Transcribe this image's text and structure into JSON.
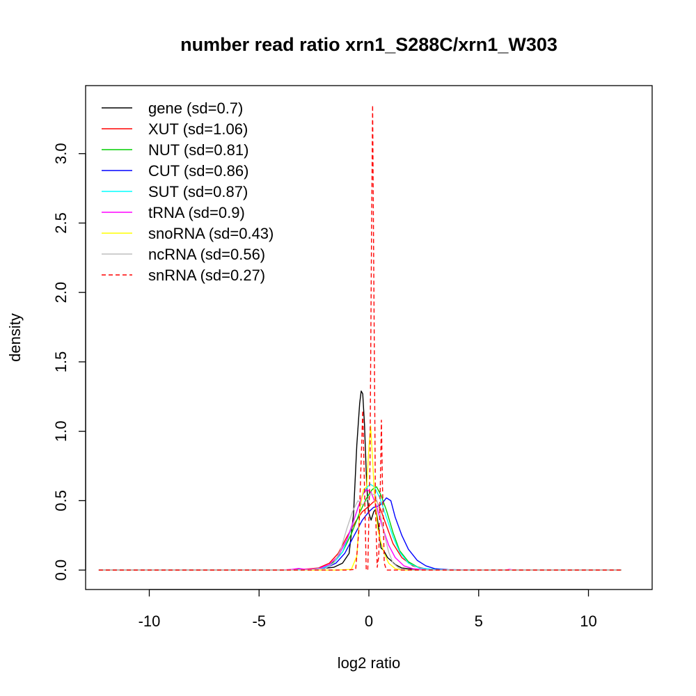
{
  "chart_data": {
    "type": "line",
    "title": "number read ratio xrn1_S288C/xrn1_W303",
    "xlabel": "log2 ratio",
    "ylabel": "density",
    "xlim": [
      -12.9,
      12.9
    ],
    "ylim": [
      -0.14,
      3.49
    ],
    "x_ticks": [
      -10,
      -5,
      0,
      5,
      10
    ],
    "y_ticks": [
      0.0,
      0.5,
      1.0,
      1.5,
      2.0,
      2.5,
      3.0
    ],
    "x_tick_labels": [
      "-10",
      "-5",
      "0",
      "5",
      "10"
    ],
    "y_tick_labels": [
      "0.0",
      "0.5",
      "1.0",
      "1.5",
      "2.0",
      "2.5",
      "3.0"
    ],
    "legend_position": "top-left",
    "grid": false,
    "series": [
      {
        "name": "gene (sd=0.7)",
        "color": "#000000",
        "dash": false,
        "points": [
          [
            -12.3,
            0
          ],
          [
            -4,
            0
          ],
          [
            -3,
            0.005
          ],
          [
            -2.2,
            0.01
          ],
          [
            -1.6,
            0.02
          ],
          [
            -1.2,
            0.05
          ],
          [
            -0.9,
            0.12
          ],
          [
            -0.7,
            0.4
          ],
          [
            -0.55,
            0.9
          ],
          [
            -0.42,
            1.2
          ],
          [
            -0.35,
            1.29
          ],
          [
            -0.28,
            1.27
          ],
          [
            -0.2,
            1.05
          ],
          [
            -0.1,
            0.62
          ],
          [
            -0.02,
            0.42
          ],
          [
            0.1,
            0.36
          ],
          [
            0.22,
            0.42
          ],
          [
            0.32,
            0.44
          ],
          [
            0.45,
            0.3
          ],
          [
            0.55,
            0.16
          ],
          [
            0.68,
            0.14
          ],
          [
            0.85,
            0.09
          ],
          [
            1.0,
            0.07
          ],
          [
            1.2,
            0.04
          ],
          [
            1.5,
            0.015
          ],
          [
            2.0,
            0.006
          ],
          [
            3.0,
            0.002
          ],
          [
            4.0,
            0
          ],
          [
            11.5,
            0
          ]
        ]
      },
      {
        "name": "XUT (sd=1.06)",
        "color": "#ff0000",
        "dash": false,
        "points": [
          [
            -12.3,
            0
          ],
          [
            -4,
            0
          ],
          [
            -3,
            0.005
          ],
          [
            -2.3,
            0.015
          ],
          [
            -1.8,
            0.05
          ],
          [
            -1.4,
            0.12
          ],
          [
            -1.0,
            0.24
          ],
          [
            -0.6,
            0.35
          ],
          [
            -0.3,
            0.42
          ],
          [
            0.0,
            0.46
          ],
          [
            0.2,
            0.49
          ],
          [
            0.35,
            0.5
          ],
          [
            0.55,
            0.43
          ],
          [
            0.8,
            0.32
          ],
          [
            1.1,
            0.19
          ],
          [
            1.5,
            0.09
          ],
          [
            2.0,
            0.03
          ],
          [
            2.6,
            0.008
          ],
          [
            3.5,
            0.002
          ],
          [
            5,
            0
          ],
          [
            11.5,
            0
          ]
        ]
      },
      {
        "name": "NUT (sd=0.81)",
        "color": "#00cd00",
        "dash": false,
        "points": [
          [
            -12.3,
            0
          ],
          [
            -4,
            0
          ],
          [
            -2.6,
            0.005
          ],
          [
            -2.0,
            0.02
          ],
          [
            -1.6,
            0.06
          ],
          [
            -1.2,
            0.13
          ],
          [
            -0.8,
            0.26
          ],
          [
            -0.4,
            0.42
          ],
          [
            -0.1,
            0.52
          ],
          [
            0.15,
            0.58
          ],
          [
            0.35,
            0.6
          ],
          [
            0.55,
            0.54
          ],
          [
            0.8,
            0.43
          ],
          [
            1.1,
            0.27
          ],
          [
            1.4,
            0.14
          ],
          [
            1.8,
            0.06
          ],
          [
            2.3,
            0.015
          ],
          [
            3.0,
            0.003
          ],
          [
            4,
            0
          ],
          [
            11.5,
            0
          ]
        ]
      },
      {
        "name": "CUT (sd=0.86)",
        "color": "#0000ff",
        "dash": false,
        "points": [
          [
            -12.3,
            0
          ],
          [
            -4,
            0
          ],
          [
            -2.4,
            0.005
          ],
          [
            -1.9,
            0.02
          ],
          [
            -1.5,
            0.05
          ],
          [
            -1.1,
            0.12
          ],
          [
            -0.7,
            0.24
          ],
          [
            -0.3,
            0.36
          ],
          [
            0.0,
            0.42
          ],
          [
            0.2,
            0.45
          ],
          [
            0.4,
            0.46
          ],
          [
            0.6,
            0.48
          ],
          [
            0.8,
            0.52
          ],
          [
            1.0,
            0.5
          ],
          [
            1.2,
            0.38
          ],
          [
            1.5,
            0.25
          ],
          [
            1.8,
            0.15
          ],
          [
            2.2,
            0.07
          ],
          [
            2.6,
            0.03
          ],
          [
            3.0,
            0.01
          ],
          [
            3.6,
            0.003
          ],
          [
            5,
            0
          ],
          [
            11.5,
            0
          ]
        ]
      },
      {
        "name": "SUT (sd=0.87)",
        "color": "#00ffff",
        "dash": false,
        "points": [
          [
            -12.3,
            0
          ],
          [
            -4,
            0
          ],
          [
            -2.6,
            0.005
          ],
          [
            -2.0,
            0.02
          ],
          [
            -1.6,
            0.05
          ],
          [
            -1.2,
            0.13
          ],
          [
            -0.8,
            0.3
          ],
          [
            -0.5,
            0.45
          ],
          [
            -0.2,
            0.57
          ],
          [
            0.05,
            0.62
          ],
          [
            0.25,
            0.6
          ],
          [
            0.5,
            0.52
          ],
          [
            0.8,
            0.38
          ],
          [
            1.1,
            0.24
          ],
          [
            1.4,
            0.13
          ],
          [
            1.8,
            0.05
          ],
          [
            2.3,
            0.015
          ],
          [
            3.0,
            0.004
          ],
          [
            4,
            0
          ],
          [
            11.5,
            0
          ]
        ]
      },
      {
        "name": "tRNA (sd=0.9)",
        "color": "#ff00ff",
        "dash": false,
        "points": [
          [
            -12.3,
            0
          ],
          [
            -4,
            0
          ],
          [
            -3.5,
            0.005
          ],
          [
            -3.2,
            0.012
          ],
          [
            -2.9,
            0.005
          ],
          [
            -2.3,
            0.01
          ],
          [
            -1.8,
            0.04
          ],
          [
            -1.4,
            0.1
          ],
          [
            -1.0,
            0.22
          ],
          [
            -0.6,
            0.4
          ],
          [
            -0.3,
            0.54
          ],
          [
            -0.1,
            0.58
          ],
          [
            0.1,
            0.56
          ],
          [
            0.35,
            0.46
          ],
          [
            0.6,
            0.32
          ],
          [
            0.9,
            0.18
          ],
          [
            1.2,
            0.09
          ],
          [
            1.6,
            0.03
          ],
          [
            2.0,
            0.01
          ],
          [
            2.6,
            0.003
          ],
          [
            3,
            0
          ],
          [
            6.2,
            0
          ],
          [
            6.4,
            0.005
          ],
          [
            6.6,
            0
          ],
          [
            11.5,
            0
          ]
        ]
      },
      {
        "name": "snoRNA (sd=0.43)",
        "color": "#ffff00",
        "dash": false,
        "points": [
          [
            -12.3,
            0
          ],
          [
            -1.5,
            0
          ],
          [
            -0.8,
            0.005
          ],
          [
            -0.55,
            0.1
          ],
          [
            -0.4,
            0.45
          ],
          [
            -0.25,
            0.58
          ],
          [
            -0.1,
            0.6
          ],
          [
            0.0,
            0.88
          ],
          [
            0.08,
            1.04
          ],
          [
            0.15,
            0.85
          ],
          [
            0.25,
            0.55
          ],
          [
            0.4,
            0.3
          ],
          [
            0.55,
            0.2
          ],
          [
            0.7,
            0.12
          ],
          [
            0.9,
            0.05
          ],
          [
            1.2,
            0.01
          ],
          [
            1.5,
            0
          ],
          [
            11.5,
            0
          ]
        ]
      },
      {
        "name": "ncRNA (sd=0.56)",
        "color": "#bebebe",
        "dash": false,
        "points": [
          [
            -12.3,
            0
          ],
          [
            -3,
            0
          ],
          [
            -2.0,
            0.01
          ],
          [
            -1.6,
            0.05
          ],
          [
            -1.3,
            0.14
          ],
          [
            -1.0,
            0.3
          ],
          [
            -0.75,
            0.42
          ],
          [
            -0.5,
            0.5
          ],
          [
            -0.3,
            0.47
          ],
          [
            -0.1,
            0.5
          ],
          [
            0.1,
            0.55
          ],
          [
            0.3,
            0.54
          ],
          [
            0.5,
            0.42
          ],
          [
            0.7,
            0.26
          ],
          [
            0.9,
            0.13
          ],
          [
            1.1,
            0.05
          ],
          [
            1.4,
            0.01
          ],
          [
            2,
            0
          ],
          [
            11.5,
            0
          ]
        ]
      },
      {
        "name": "snRNA (sd=0.27)",
        "color": "#ff0000",
        "dash": true,
        "points": [
          [
            -12.3,
            0
          ],
          [
            -1,
            0
          ],
          [
            -0.6,
            0.005
          ],
          [
            -0.45,
            0.3
          ],
          [
            -0.35,
            0.8
          ],
          [
            -0.28,
            1.15
          ],
          [
            -0.2,
            0.6
          ],
          [
            -0.12,
            0.0
          ],
          [
            -0.05,
            0.0
          ],
          [
            0.05,
            0.75
          ],
          [
            0.12,
            2.4
          ],
          [
            0.17,
            3.35
          ],
          [
            0.22,
            2.2
          ],
          [
            0.3,
            0.45
          ],
          [
            0.38,
            0.02
          ],
          [
            0.45,
            0.1
          ],
          [
            0.52,
            0.6
          ],
          [
            0.57,
            1.08
          ],
          [
            0.62,
            0.6
          ],
          [
            0.7,
            0.05
          ],
          [
            0.8,
            0
          ],
          [
            11.5,
            0
          ]
        ]
      }
    ]
  }
}
